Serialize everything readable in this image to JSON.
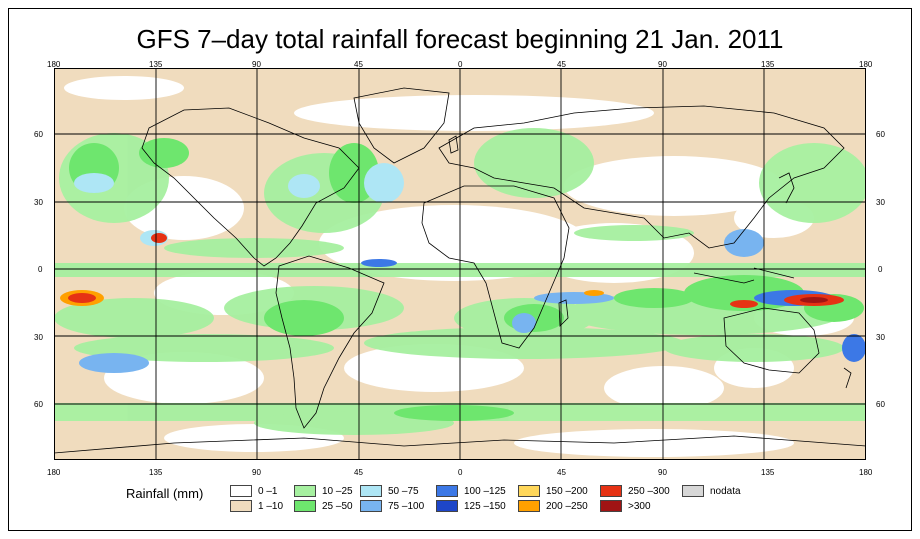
{
  "title": "GFS 7–day total rainfall forecast beginning 21 Jan. 2011",
  "axes": {
    "lon_top": [
      "180",
      "135",
      "90",
      "45",
      "0",
      "45",
      "90",
      "135",
      "180"
    ],
    "lon_bottom": [
      "180",
      "135",
      "90",
      "45",
      "0",
      "45",
      "90",
      "135",
      "180"
    ],
    "lat_left": [
      "60",
      "30",
      "0",
      "30",
      "60"
    ],
    "lat_right": [
      "60",
      "30",
      "0",
      "30",
      "60"
    ]
  },
  "legend": {
    "title": "Rainfall (mm)",
    "items": [
      {
        "label": "0 –1",
        "color": "#ffffff"
      },
      {
        "label": "1 –10",
        "color": "#f0dcbe"
      },
      {
        "label": "10 –25",
        "color": "#a6f0a0"
      },
      {
        "label": "25 –50",
        "color": "#6ee66e"
      },
      {
        "label": "50 –75",
        "color": "#aee6f5"
      },
      {
        "label": "75 –100",
        "color": "#78b4f0"
      },
      {
        "label": "100 –125",
        "color": "#3c78e6"
      },
      {
        "label": "125 –150",
        "color": "#1e46c8"
      },
      {
        "label": "150 –200",
        "color": "#ffd75a"
      },
      {
        "label": "200 –250",
        "color": "#ffa000"
      },
      {
        "label": "250 –300",
        "color": "#e63214"
      },
      {
        "label": ">300",
        "color": "#a01414"
      },
      {
        "label": "nodata",
        "color": "#d7d7d7"
      }
    ]
  },
  "colors": {
    "land_outline": "#000000",
    "grid": "#000000"
  }
}
